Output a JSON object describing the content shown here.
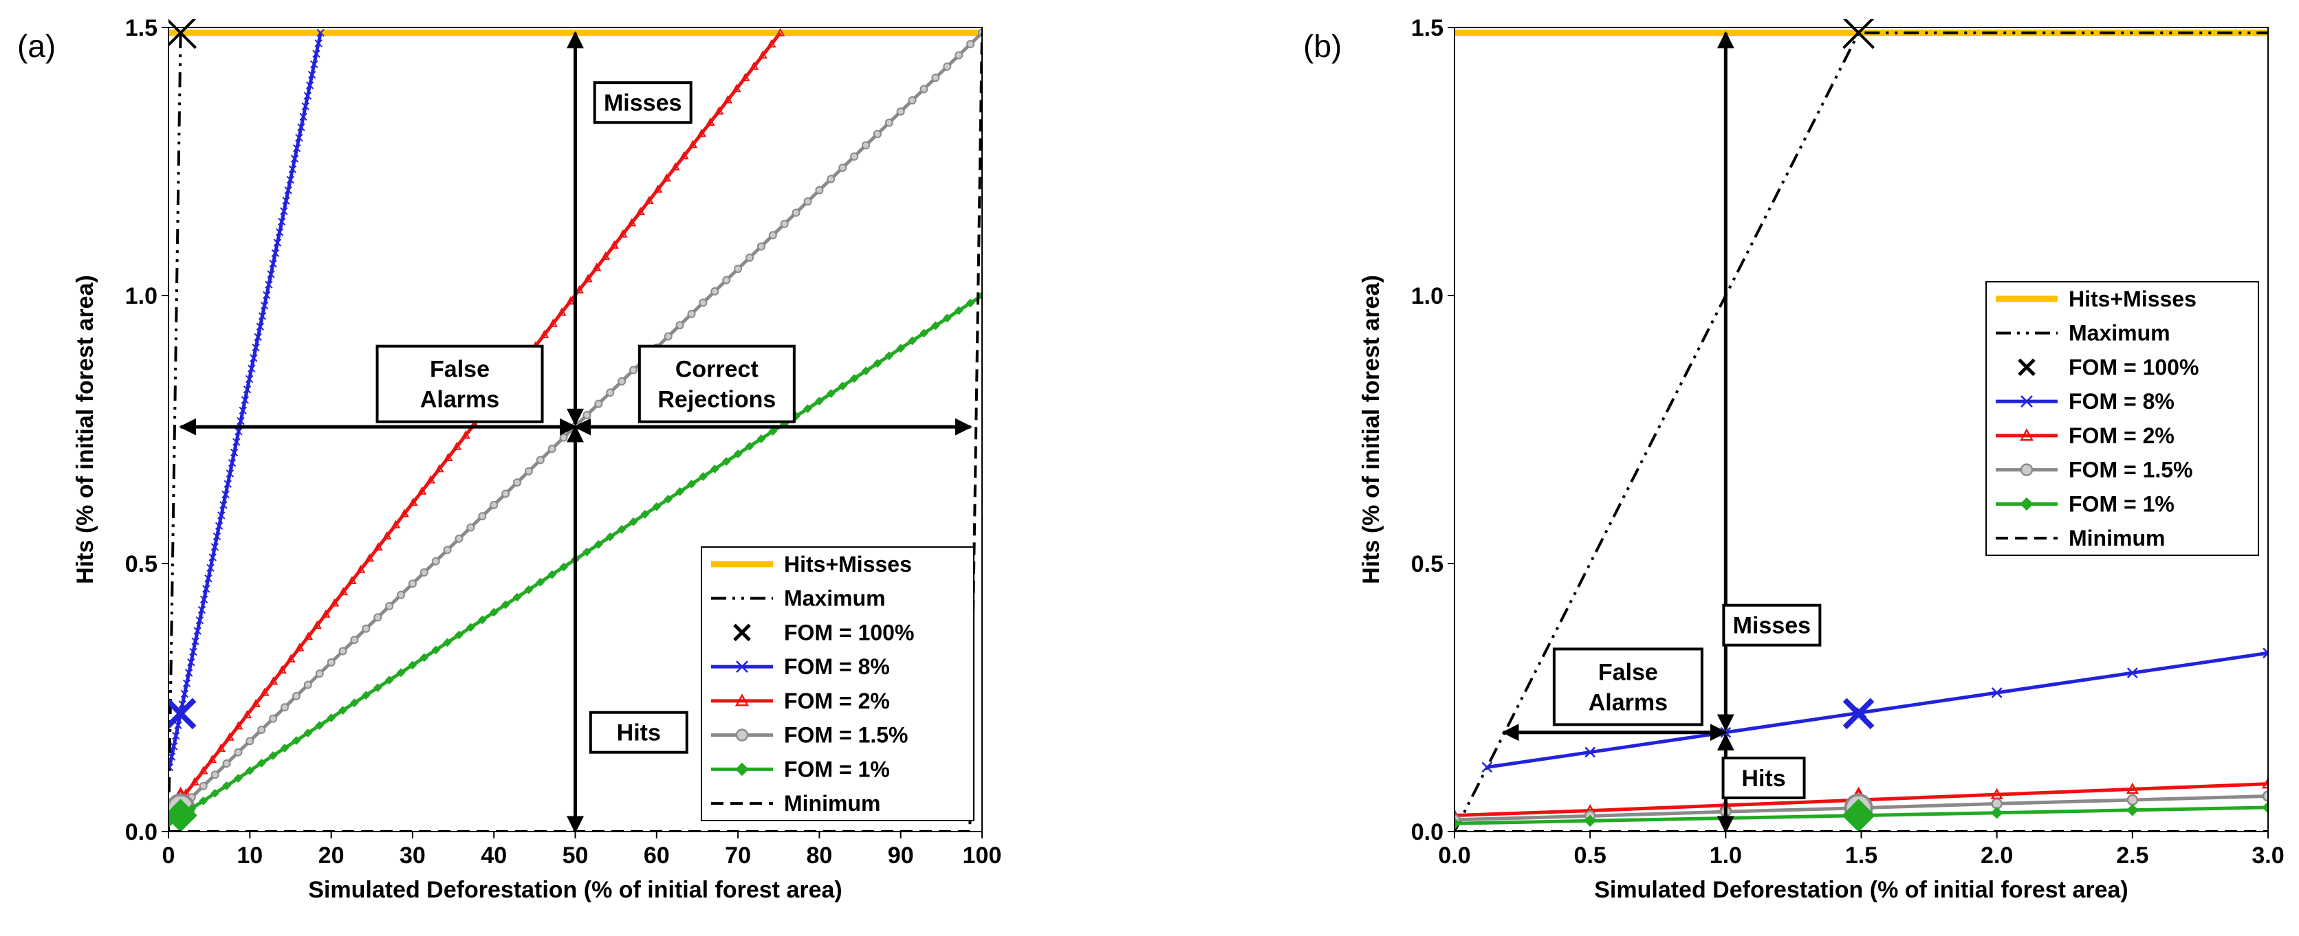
{
  "chart_data": [
    {
      "id": "a",
      "panel_label": "(a)",
      "type": "line",
      "xlabel": "Simulated Deforestation (% of initial forest area)",
      "ylabel": "Hits (% of initial forest area)",
      "xlim": [
        0,
        100
      ],
      "ylim": [
        0,
        1.5
      ],
      "xticks": [
        0,
        10,
        20,
        30,
        40,
        50,
        60,
        70,
        80,
        90,
        100
      ],
      "yticks": [
        0.0,
        0.5,
        1.0,
        1.5
      ],
      "xtick_labels": [
        "0",
        "10",
        "20",
        "30",
        "40",
        "50",
        "60",
        "70",
        "80",
        "90",
        "100"
      ],
      "ytick_labels": [
        "0.0",
        "0.5",
        "1.0",
        "1.5"
      ],
      "series": [
        {
          "name": "Hits+Misses",
          "color": "#FFC000",
          "style": "solid-thick",
          "x": [
            0,
            100
          ],
          "y": [
            1.49,
            1.49
          ]
        },
        {
          "name": "Maximum",
          "color": "#000000",
          "style": "dashdot",
          "x": [
            0,
            1.49,
            1.49
          ],
          "y": [
            0,
            1.49,
            1.49
          ]
        },
        {
          "name": "FOM = 100%",
          "color": "#000000",
          "marker": "x",
          "x": [
            1.49
          ],
          "y": [
            1.49
          ]
        },
        {
          "name": "FOM = 8%",
          "color": "#2222DD",
          "marker": "x",
          "x": [
            0.12,
            18.7
          ],
          "y": [
            0.12,
            1.49
          ],
          "highlight": {
            "x": 1.49,
            "y": 0.22
          }
        },
        {
          "name": "FOM = 2%",
          "color": "#EE1111",
          "marker": "triangle",
          "x": [
            0,
            75.2
          ],
          "y": [
            0.03,
            1.49
          ],
          "highlight": {
            "x": 1.49,
            "y": 0.058
          }
        },
        {
          "name": "FOM = 1.5%",
          "color": "#8A8A8A",
          "marker": "circle",
          "x": [
            0,
            100
          ],
          "y": [
            0.022,
            1.49
          ],
          "highlight": {
            "x": 1.49,
            "y": 0.044
          }
        },
        {
          "name": "FOM = 1%",
          "color": "#22AA22",
          "marker": "diamond",
          "x": [
            0,
            100
          ],
          "y": [
            0.015,
            1.0
          ],
          "highlight": {
            "x": 1.49,
            "y": 0.03
          }
        },
        {
          "name": "Minimum",
          "color": "#000000",
          "style": "dashed",
          "x": [
            0,
            98.5,
            98.5,
            100
          ],
          "y": [
            0,
            0,
            0,
            1.49
          ]
        }
      ],
      "annotations": [
        {
          "key": "misses",
          "text": [
            "Misses"
          ]
        },
        {
          "key": "false_alarms",
          "text": [
            "False",
            "Alarms"
          ]
        },
        {
          "key": "correct_rejections",
          "text": [
            "Correct",
            "Rejections"
          ]
        },
        {
          "key": "hits",
          "text": [
            "Hits"
          ]
        }
      ],
      "legend_position": "lower-right"
    },
    {
      "id": "b",
      "panel_label": "(b)",
      "type": "line",
      "xlabel": "Simulated Deforestation (% of initial forest area)",
      "ylabel": "Hits (% of initial forest area)",
      "xlim": [
        0,
        3
      ],
      "ylim": [
        0,
        1.5
      ],
      "xticks": [
        0,
        0.5,
        1.0,
        1.5,
        2.0,
        2.5,
        3.0
      ],
      "yticks": [
        0.0,
        0.5,
        1.0,
        1.5
      ],
      "xtick_labels": [
        "0.0",
        "0.5",
        "1.0",
        "1.5",
        "2.0",
        "2.5",
        "3.0"
      ],
      "ytick_labels": [
        "0.0",
        "0.5",
        "1.0",
        "1.5"
      ],
      "series": [
        {
          "name": "Hits+Misses",
          "color": "#FFC000",
          "style": "solid-thick",
          "x": [
            0,
            3
          ],
          "y": [
            1.49,
            1.49
          ]
        },
        {
          "name": "Maximum",
          "color": "#000000",
          "style": "dashdot",
          "x": [
            0,
            1.49,
            3.0
          ],
          "y": [
            0,
            1.49,
            1.49
          ]
        },
        {
          "name": "FOM = 100%",
          "color": "#000000",
          "marker": "x",
          "x": [
            1.49
          ],
          "y": [
            1.49
          ]
        },
        {
          "name": "FOM = 8%",
          "color": "#2222DD",
          "marker": "x",
          "x": [
            0.12,
            0.5,
            1.0,
            1.5,
            2.0,
            2.5,
            3.0
          ],
          "y": [
            0.12,
            0.148,
            0.185,
            0.222,
            0.259,
            0.296,
            0.333
          ],
          "highlight": {
            "x": 1.49,
            "y": 0.22
          }
        },
        {
          "name": "FOM = 2%",
          "color": "#EE1111",
          "marker": "triangle",
          "x": [
            0,
            0.5,
            1.0,
            1.5,
            2.0,
            2.5,
            3.0
          ],
          "y": [
            0.03,
            0.039,
            0.049,
            0.059,
            0.069,
            0.079,
            0.089
          ],
          "highlight": {
            "x": 1.49,
            "y": 0.058
          }
        },
        {
          "name": "FOM = 1.5%",
          "color": "#8A8A8A",
          "marker": "circle",
          "x": [
            0,
            0.5,
            1.0,
            1.5,
            2.0,
            2.5,
            3.0
          ],
          "y": [
            0.022,
            0.029,
            0.037,
            0.044,
            0.052,
            0.059,
            0.066
          ],
          "highlight": {
            "x": 1.49,
            "y": 0.044
          }
        },
        {
          "name": "FOM = 1%",
          "color": "#22AA22",
          "marker": "diamond",
          "x": [
            0,
            0.5,
            1.0,
            1.5,
            2.0,
            2.5,
            3.0
          ],
          "y": [
            0.015,
            0.02,
            0.025,
            0.03,
            0.035,
            0.04,
            0.045
          ],
          "highlight": {
            "x": 1.49,
            "y": 0.03
          }
        },
        {
          "name": "Minimum",
          "color": "#000000",
          "style": "dashed",
          "x": [
            0,
            3
          ],
          "y": [
            0,
            0
          ]
        }
      ],
      "annotations": [
        {
          "key": "misses",
          "text": [
            "Misses"
          ]
        },
        {
          "key": "false_alarms",
          "text": [
            "False",
            "Alarms"
          ]
        },
        {
          "key": "hits",
          "text": [
            "Hits"
          ]
        }
      ],
      "legend_position": "right"
    }
  ]
}
